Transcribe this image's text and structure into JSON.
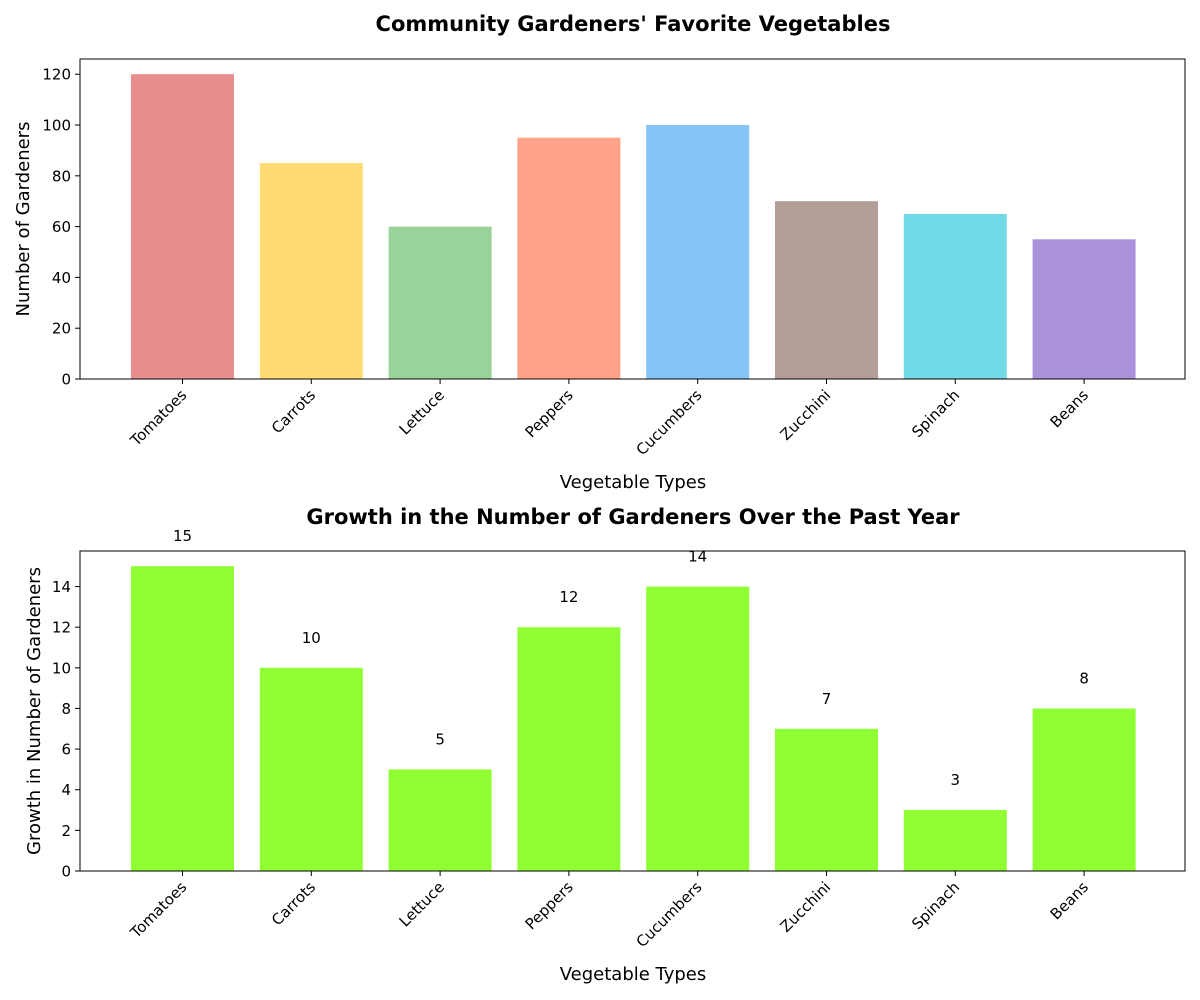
{
  "chart_data": [
    {
      "type": "bar",
      "title": "Community Gardeners' Favorite Vegetables",
      "xlabel": "Vegetable Types",
      "ylabel": "Number of Gardeners",
      "categories": [
        "Tomatoes",
        "Carrots",
        "Lettuce",
        "Peppers",
        "Cucumbers",
        "Zucchini",
        "Spinach",
        "Beans"
      ],
      "values": [
        120,
        85,
        60,
        95,
        100,
        70,
        65,
        55
      ],
      "colors": [
        "#e88e8e",
        "#ffdc73",
        "#99d399",
        "#ffa287",
        "#84c4f7",
        "#b39f97",
        "#72dae7",
        "#a992da"
      ],
      "ylim": [
        0,
        126
      ],
      "yticks": [
        0,
        20,
        40,
        60,
        80,
        100,
        120
      ],
      "grid": false,
      "data_labels": false
    },
    {
      "type": "bar",
      "title": "Growth in the Number of Gardeners Over the Past Year",
      "xlabel": "Vegetable Types",
      "ylabel": "Growth in Number of Gardeners",
      "categories": [
        "Tomatoes",
        "Carrots",
        "Lettuce",
        "Peppers",
        "Cucumbers",
        "Zucchini",
        "Spinach",
        "Beans"
      ],
      "values": [
        15,
        10,
        5,
        12,
        14,
        7,
        3,
        8
      ],
      "colors": [
        "#8fff34",
        "#8fff34",
        "#8fff34",
        "#8fff34",
        "#8fff34",
        "#8fff34",
        "#8fff34",
        "#8fff34"
      ],
      "ylim": [
        0,
        15.75
      ],
      "yticks": [
        0,
        2,
        4,
        6,
        8,
        10,
        12,
        14
      ],
      "grid": false,
      "data_labels": true
    }
  ]
}
